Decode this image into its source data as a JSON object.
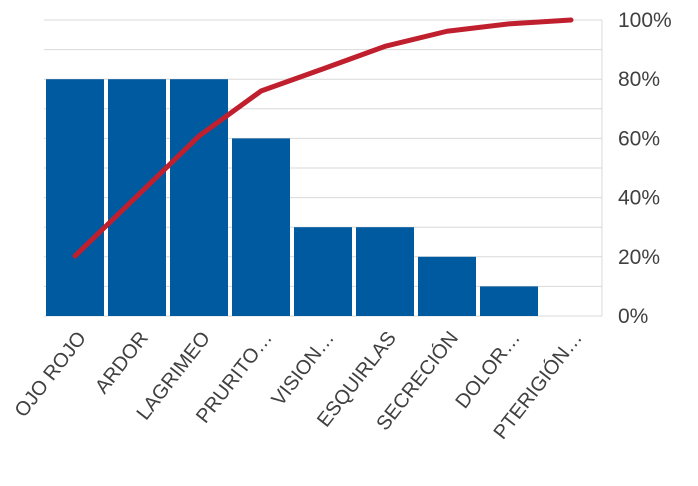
{
  "chart_data": {
    "type": "bar",
    "title": "",
    "xlabel": "",
    "ylabel": "",
    "categories": [
      "OJO ROJO",
      "ARDOR",
      "LAGRIMEO",
      "PRURITO…",
      "VISION…",
      "ESQUIRLAS",
      "SECRECIÓN",
      "DOLOR…",
      "PTERIGIÓN…"
    ],
    "series": [
      {
        "values": [
          8,
          8,
          8,
          6,
          3,
          3,
          2,
          1,
          0
        ]
      }
    ],
    "cumulative_line": [
      0.203,
      0.405,
      0.608,
      0.76,
      0.835,
      0.911,
      0.962,
      0.987,
      1.0
    ],
    "y_bar_lim": [
      0,
      10
    ],
    "y_right_lim": [
      0,
      1
    ],
    "y_right_ticks": [
      "0%",
      "20%",
      "40%",
      "60%",
      "80%",
      "100%"
    ],
    "grid": true,
    "legend": "none",
    "colors": {
      "bar": "#005aa0",
      "line": "#c0202e",
      "grid": "#d9d9d9",
      "axis": "#d9d9d9"
    }
  }
}
